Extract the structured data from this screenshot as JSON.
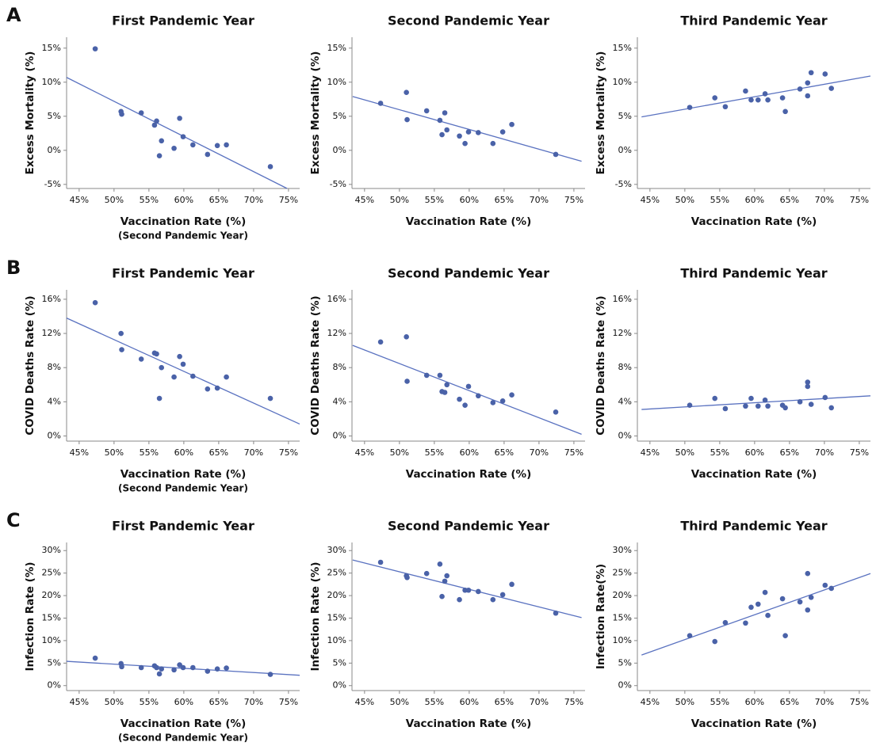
{
  "row_labels": [
    "A",
    "B",
    "C"
  ],
  "chart_data": [
    {
      "type": "scatter",
      "title": "First Pandemic Year",
      "xlabel": "Vaccination Rate (%)",
      "x_note": "(Second Pandemic Year)",
      "ylabel": "Excess Mortality (%)",
      "color": "#4a62a8",
      "x": [
        47.3,
        51.0,
        51.1,
        53.9,
        55.8,
        56.1,
        56.5,
        56.8,
        58.6,
        59.4,
        59.9,
        61.3,
        63.4,
        64.8,
        66.1,
        72.4
      ],
      "values": [
        14.9,
        5.7,
        5.3,
        5.5,
        3.7,
        4.3,
        -0.8,
        1.4,
        0.3,
        4.7,
        2.0,
        0.8,
        -0.6,
        0.7,
        0.8,
        -2.4
      ],
      "fit": {
        "x": [
          43.2,
          74.8
        ],
        "values": [
          10.7,
          -5.6
        ]
      },
      "xlim": [
        43.2,
        76.6
      ],
      "ylim": [
        -5.6,
        16.6
      ],
      "xticks": [
        {
          "value": 45,
          "label": "45%"
        },
        {
          "value": 50,
          "label": "50%"
        },
        {
          "value": 55,
          "label": "55%"
        },
        {
          "value": 60,
          "label": "60%"
        },
        {
          "value": 65,
          "label": "65%"
        },
        {
          "value": 70,
          "label": "70%"
        },
        {
          "value": 75,
          "label": "75%"
        }
      ],
      "yticks": [
        {
          "value": -5,
          "label": "-5%"
        },
        {
          "value": 0,
          "label": "0%"
        },
        {
          "value": 5,
          "label": "5%"
        },
        {
          "value": 10,
          "label": "10%"
        },
        {
          "value": 15,
          "label": "15%"
        }
      ]
    },
    {
      "type": "scatter",
      "title": "Second Pandemic Year",
      "xlabel": "Vaccination Rate (%)",
      "ylabel": "Excess Mortality (%)",
      "color": "#4a62a8",
      "x": [
        47.3,
        51.0,
        51.1,
        53.9,
        55.8,
        56.1,
        56.5,
        56.8,
        58.6,
        59.4,
        59.9,
        61.3,
        63.4,
        64.8,
        66.1,
        72.4
      ],
      "values": [
        6.9,
        8.5,
        4.5,
        5.8,
        4.4,
        2.3,
        5.5,
        3.0,
        2.1,
        1.0,
        2.7,
        2.6,
        1.0,
        2.7,
        3.8,
        -0.6
      ],
      "fit": {
        "x": [
          43.3,
          76.1
        ],
        "values": [
          7.9,
          -1.6
        ]
      },
      "xlim": [
        43.2,
        76.6
      ],
      "ylim": [
        -5.6,
        16.6
      ],
      "xticks": [
        {
          "value": 45,
          "label": "45%"
        },
        {
          "value": 50,
          "label": "50%"
        },
        {
          "value": 55,
          "label": "55%"
        },
        {
          "value": 60,
          "label": "60%"
        },
        {
          "value": 65,
          "label": "65%"
        },
        {
          "value": 70,
          "label": "70%"
        },
        {
          "value": 75,
          "label": "75%"
        }
      ],
      "yticks": [
        {
          "value": -5,
          "label": "-5%"
        },
        {
          "value": 0,
          "label": "0%"
        },
        {
          "value": 5,
          "label": "5%"
        },
        {
          "value": 10,
          "label": "10%"
        },
        {
          "value": 15,
          "label": "15%"
        }
      ]
    },
    {
      "type": "scatter",
      "title": "Third Pandemic Year",
      "xlabel": "Vaccination Rate (%)",
      "ylabel": "Excess Mortality (%)",
      "color": "#4a62a8",
      "x": [
        50.7,
        54.3,
        55.8,
        58.7,
        59.5,
        60.5,
        61.5,
        61.9,
        64.0,
        64.4,
        66.5,
        67.6,
        67.6,
        68.1,
        70.1,
        71.0
      ],
      "values": [
        6.3,
        7.7,
        6.4,
        8.7,
        7.4,
        7.4,
        8.3,
        7.4,
        7.7,
        5.7,
        9.0,
        9.9,
        8.0,
        11.4,
        11.2,
        9.1
      ],
      "fit": {
        "x": [
          43.8,
          76.6
        ],
        "values": [
          4.9,
          10.9
        ]
      },
      "xlim": [
        43.2,
        76.6
      ],
      "ylim": [
        -5.6,
        16.6
      ],
      "xticks": [
        {
          "value": 45,
          "label": "45%"
        },
        {
          "value": 50,
          "label": "50%"
        },
        {
          "value": 55,
          "label": "55%"
        },
        {
          "value": 60,
          "label": "60%"
        },
        {
          "value": 65,
          "label": "65%"
        },
        {
          "value": 70,
          "label": "70%"
        },
        {
          "value": 75,
          "label": "75%"
        }
      ],
      "yticks": [
        {
          "value": -5,
          "label": "-5%"
        },
        {
          "value": 0,
          "label": "0%"
        },
        {
          "value": 5,
          "label": "5%"
        },
        {
          "value": 10,
          "label": "10%"
        },
        {
          "value": 15,
          "label": "15%"
        }
      ]
    },
    {
      "type": "scatter",
      "title": "First Pandemic Year",
      "xlabel": "Vaccination Rate (%)",
      "x_note": "(Second Pandemic Year)",
      "ylabel": "COVID Deaths Rate (%)",
      "color": "#4a62a8",
      "x": [
        47.3,
        51.0,
        51.1,
        53.9,
        55.8,
        56.1,
        56.5,
        56.8,
        58.6,
        59.4,
        59.9,
        61.3,
        63.4,
        64.8,
        66.1,
        72.4
      ],
      "values": [
        15.6,
        12.0,
        10.1,
        9.0,
        9.7,
        9.6,
        4.4,
        8.0,
        6.9,
        9.3,
        8.4,
        7.0,
        5.5,
        5.6,
        6.9,
        4.4
      ],
      "fit": {
        "x": [
          43.2,
          76.6
        ],
        "values": [
          13.8,
          1.4
        ]
      },
      "xlim": [
        43.2,
        76.6
      ],
      "ylim": [
        -0.6,
        17.1
      ],
      "xticks": [
        {
          "value": 45,
          "label": "45%"
        },
        {
          "value": 50,
          "label": "50%"
        },
        {
          "value": 55,
          "label": "55%"
        },
        {
          "value": 60,
          "label": "60%"
        },
        {
          "value": 65,
          "label": "65%"
        },
        {
          "value": 70,
          "label": "70%"
        },
        {
          "value": 75,
          "label": "75%"
        }
      ],
      "yticks": [
        {
          "value": 0,
          "label": "0%"
        },
        {
          "value": 4,
          "label": "4%"
        },
        {
          "value": 8,
          "label": "8%"
        },
        {
          "value": 12,
          "label": "12%"
        },
        {
          "value": 16,
          "label": "16%"
        }
      ]
    },
    {
      "type": "scatter",
      "title": "Second Pandemic Year",
      "xlabel": "Vaccination Rate (%)",
      "ylabel": "COVID Deaths Rate (%)",
      "color": "#4a62a8",
      "x": [
        47.3,
        51.0,
        51.1,
        53.9,
        55.8,
        56.1,
        56.5,
        56.8,
        58.6,
        59.4,
        59.9,
        61.3,
        63.4,
        64.8,
        66.1,
        72.4
      ],
      "values": [
        11.0,
        11.6,
        6.4,
        7.1,
        7.1,
        5.2,
        5.1,
        6.0,
        4.3,
        3.6,
        5.8,
        4.7,
        3.9,
        4.1,
        4.8,
        2.8
      ],
      "fit": {
        "x": [
          43.3,
          76.1
        ],
        "values": [
          10.6,
          0.2
        ]
      },
      "xlim": [
        43.2,
        76.6
      ],
      "ylim": [
        -0.6,
        17.1
      ],
      "xticks": [
        {
          "value": 45,
          "label": "45%"
        },
        {
          "value": 50,
          "label": "50%"
        },
        {
          "value": 55,
          "label": "55%"
        },
        {
          "value": 60,
          "label": "60%"
        },
        {
          "value": 65,
          "label": "65%"
        },
        {
          "value": 70,
          "label": "70%"
        },
        {
          "value": 75,
          "label": "75%"
        }
      ],
      "yticks": [
        {
          "value": 0,
          "label": "0%"
        },
        {
          "value": 4,
          "label": "4%"
        },
        {
          "value": 8,
          "label": "8%"
        },
        {
          "value": 12,
          "label": "12%"
        },
        {
          "value": 16,
          "label": "16%"
        }
      ]
    },
    {
      "type": "scatter",
      "title": "Third Pandemic Year",
      "xlabel": "Vaccination Rate (%)",
      "ylabel": "COVID Deaths Rate (%)",
      "color": "#4a62a8",
      "x": [
        50.7,
        54.3,
        55.8,
        58.7,
        59.5,
        60.5,
        61.5,
        61.9,
        64.0,
        64.4,
        66.5,
        67.6,
        67.6,
        68.1,
        70.1,
        71.0
      ],
      "values": [
        3.6,
        4.4,
        3.2,
        3.5,
        4.4,
        3.5,
        4.2,
        3.5,
        3.6,
        3.3,
        4.0,
        6.3,
        5.8,
        3.7,
        4.5,
        3.3
      ],
      "fit": {
        "x": [
          43.8,
          76.6
        ],
        "values": [
          3.1,
          4.7
        ]
      },
      "xlim": [
        43.2,
        76.6
      ],
      "ylim": [
        -0.6,
        17.1
      ],
      "xticks": [
        {
          "value": 45,
          "label": "45%"
        },
        {
          "value": 50,
          "label": "50%"
        },
        {
          "value": 55,
          "label": "55%"
        },
        {
          "value": 60,
          "label": "60%"
        },
        {
          "value": 65,
          "label": "65%"
        },
        {
          "value": 70,
          "label": "70%"
        },
        {
          "value": 75,
          "label": "75%"
        }
      ],
      "yticks": [
        {
          "value": 0,
          "label": "0%"
        },
        {
          "value": 4,
          "label": "4%"
        },
        {
          "value": 8,
          "label": "8%"
        },
        {
          "value": 12,
          "label": "12%"
        },
        {
          "value": 16,
          "label": "16%"
        }
      ]
    },
    {
      "type": "scatter",
      "title": "First Pandemic Year",
      "xlabel": "Vaccination Rate (%)",
      "x_note": "(Second Pandemic Year)",
      "ylabel": "Infection Rate (%)",
      "color": "#4a62a8",
      "x": [
        47.3,
        51.0,
        51.1,
        53.9,
        55.8,
        56.1,
        56.5,
        56.8,
        58.6,
        59.4,
        59.9,
        61.3,
        63.4,
        64.8,
        66.1,
        72.4
      ],
      "values": [
        6.1,
        4.9,
        4.2,
        4.0,
        4.4,
        4.0,
        2.6,
        3.7,
        3.5,
        4.6,
        4.0,
        4.0,
        3.2,
        3.7,
        3.9,
        2.5
      ],
      "fit": {
        "x": [
          43.2,
          76.6
        ],
        "values": [
          5.4,
          2.3
        ]
      },
      "xlim": [
        43.2,
        76.6
      ],
      "ylim": [
        -1.1,
        31.8
      ],
      "xticks": [
        {
          "value": 45,
          "label": "45%"
        },
        {
          "value": 50,
          "label": "50%"
        },
        {
          "value": 55,
          "label": "55%"
        },
        {
          "value": 60,
          "label": "60%"
        },
        {
          "value": 65,
          "label": "65%"
        },
        {
          "value": 70,
          "label": "70%"
        },
        {
          "value": 75,
          "label": "75%"
        }
      ],
      "yticks": [
        {
          "value": 0,
          "label": "0%"
        },
        {
          "value": 5,
          "label": "5%"
        },
        {
          "value": 10,
          "label": "10%"
        },
        {
          "value": 15,
          "label": "15%"
        },
        {
          "value": 20,
          "label": "20%"
        },
        {
          "value": 25,
          "label": "25%"
        },
        {
          "value": 30,
          "label": "30%"
        }
      ]
    },
    {
      "type": "scatter",
      "title": "Second Pandemic Year",
      "xlabel": "Vaccination Rate (%)",
      "ylabel": "Infection Rate (%)",
      "color": "#4a62a8",
      "x": [
        47.3,
        51.0,
        51.1,
        53.9,
        55.8,
        56.1,
        56.5,
        56.8,
        58.6,
        59.4,
        59.9,
        61.3,
        63.4,
        64.8,
        66.1,
        72.4
      ],
      "values": [
        27.4,
        24.4,
        24.0,
        24.9,
        27.0,
        19.8,
        23.2,
        24.4,
        19.1,
        21.2,
        21.2,
        20.9,
        19.1,
        20.2,
        22.5,
        16.1
      ],
      "fit": {
        "x": [
          43.3,
          76.1
        ],
        "values": [
          27.9,
          15.1
        ]
      },
      "xlim": [
        43.2,
        76.6
      ],
      "ylim": [
        -1.1,
        31.8
      ],
      "xticks": [
        {
          "value": 45,
          "label": "45%"
        },
        {
          "value": 50,
          "label": "50%"
        },
        {
          "value": 55,
          "label": "55%"
        },
        {
          "value": 60,
          "label": "60%"
        },
        {
          "value": 65,
          "label": "65%"
        },
        {
          "value": 70,
          "label": "70%"
        },
        {
          "value": 75,
          "label": "75%"
        }
      ],
      "yticks": [
        {
          "value": 0,
          "label": "0%"
        },
        {
          "value": 5,
          "label": "5%"
        },
        {
          "value": 10,
          "label": "10%"
        },
        {
          "value": 15,
          "label": "15%"
        },
        {
          "value": 20,
          "label": "20%"
        },
        {
          "value": 25,
          "label": "25%"
        },
        {
          "value": 30,
          "label": "30%"
        }
      ]
    },
    {
      "type": "scatter",
      "title": "Third Pandemic Year",
      "xlabel": "Vaccination Rate (%)",
      "ylabel": "Infection Rate(%)",
      "color": "#4a62a8",
      "x": [
        50.7,
        54.3,
        55.8,
        58.7,
        59.5,
        60.5,
        61.5,
        61.9,
        64.0,
        64.4,
        66.5,
        67.6,
        67.6,
        68.1,
        70.1,
        71.0
      ],
      "values": [
        11.1,
        9.8,
        14.0,
        13.9,
        17.4,
        18.1,
        20.7,
        15.6,
        19.3,
        11.1,
        18.6,
        24.9,
        16.8,
        19.6,
        22.3,
        21.6
      ],
      "fit": {
        "x": [
          43.8,
          76.6
        ],
        "values": [
          6.8,
          24.9
        ]
      },
      "xlim": [
        43.2,
        76.6
      ],
      "ylim": [
        -1.1,
        31.8
      ],
      "xticks": [
        {
          "value": 45,
          "label": "45%"
        },
        {
          "value": 50,
          "label": "50%"
        },
        {
          "value": 55,
          "label": "55%"
        },
        {
          "value": 60,
          "label": "60%"
        },
        {
          "value": 65,
          "label": "65%"
        },
        {
          "value": 70,
          "label": "70%"
        },
        {
          "value": 75,
          "label": "75%"
        }
      ],
      "yticks": [
        {
          "value": 0,
          "label": "0%"
        },
        {
          "value": 5,
          "label": "5%"
        },
        {
          "value": 10,
          "label": "10%"
        },
        {
          "value": 15,
          "label": "15%"
        },
        {
          "value": 20,
          "label": "20%"
        },
        {
          "value": 25,
          "label": "25%"
        },
        {
          "value": 30,
          "label": "30%"
        }
      ]
    }
  ]
}
